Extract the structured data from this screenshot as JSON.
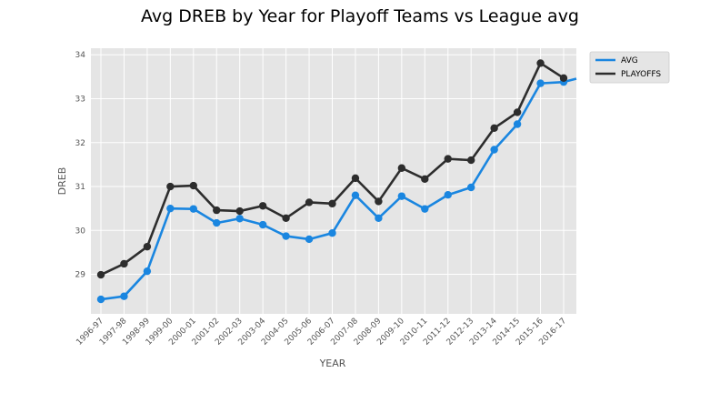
{
  "chart_data": {
    "type": "line",
    "title": "Avg DREB by Year for Playoff Teams vs League avg",
    "xlabel": "YEAR",
    "ylabel": "DREB",
    "ylim": [
      28.1,
      34.15
    ],
    "yticks": [
      29,
      30,
      31,
      32,
      33,
      34
    ],
    "grid": true,
    "legend_position": "outside-top-right",
    "categories": [
      "1996-97",
      "1997-98",
      "1998-99",
      "1999-00",
      "2000-01",
      "2001-02",
      "2002-03",
      "2003-04",
      "2004-05",
      "2005-06",
      "2006-07",
      "2007-08",
      "2008-09",
      "2009-10",
      "2010-11",
      "2011-12",
      "2012-13",
      "2013-14",
      "2014-15",
      "2015-16",
      "2016-17"
    ],
    "series": [
      {
        "name": "AVG",
        "color": "#1a86e0",
        "values": [
          28.43,
          28.5,
          29.07,
          30.5,
          30.49,
          30.17,
          30.27,
          30.13,
          29.87,
          29.8,
          29.94,
          30.8,
          30.28,
          30.78,
          30.49,
          30.81,
          30.98,
          31.84,
          32.42,
          33.35,
          33.38
        ],
        "extends_past_last_category": 33.52
      },
      {
        "name": "PLAYOFFS",
        "color": "#2d2d2d",
        "values": [
          28.99,
          29.24,
          29.63,
          31.0,
          31.02,
          30.46,
          30.44,
          30.56,
          30.28,
          30.64,
          30.61,
          31.19,
          30.66,
          31.42,
          31.17,
          31.63,
          31.6,
          32.33,
          32.69,
          33.81,
          33.47
        ]
      }
    ]
  }
}
